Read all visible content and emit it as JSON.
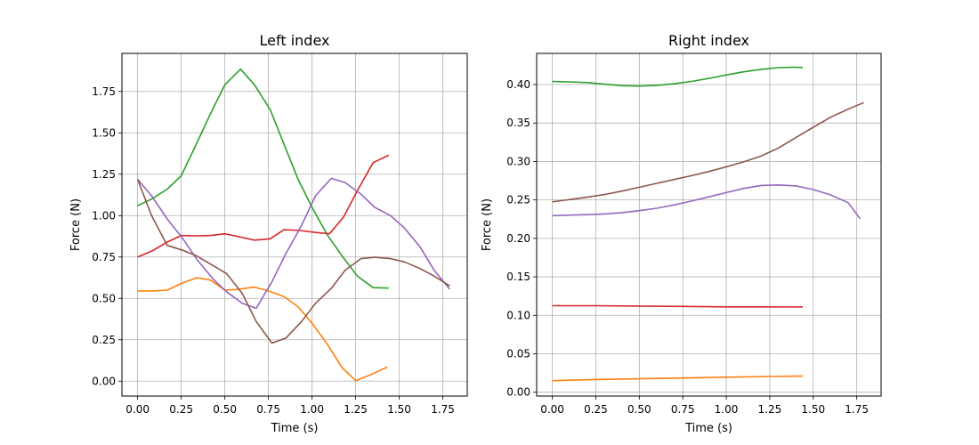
{
  "chart_data": [
    {
      "type": "line",
      "title": "Left index",
      "xlabel": "Time (s)",
      "ylabel": "Force (N)",
      "xlim": [
        -0.09,
        1.89
      ],
      "ylim": [
        -0.09,
        1.98
      ],
      "xticks": [
        0.0,
        0.25,
        0.5,
        0.75,
        1.0,
        1.25,
        1.5,
        1.75
      ],
      "xtick_labels": [
        "0.00",
        "0.25",
        "0.50",
        "0.75",
        "1.00",
        "1.25",
        "1.50",
        "1.75"
      ],
      "yticks": [
        0.0,
        0.25,
        0.5,
        0.75,
        1.0,
        1.25,
        1.5,
        1.75
      ],
      "ytick_labels": [
        "0.00",
        "0.25",
        "0.50",
        "0.75",
        "1.00",
        "1.25",
        "1.50",
        "1.75"
      ],
      "grid": true,
      "series": [
        {
          "color": "#ff7f0e",
          "x": [
            0.0,
            0.08,
            0.17,
            0.25,
            0.34,
            0.42,
            0.5,
            0.58,
            0.67,
            0.75,
            0.84,
            0.92,
            1.0,
            1.09,
            1.17,
            1.25,
            1.34,
            1.43
          ],
          "y": [
            0.545,
            0.545,
            0.55,
            0.59,
            0.625,
            0.61,
            0.55,
            0.555,
            0.568,
            0.545,
            0.51,
            0.45,
            0.35,
            0.22,
            0.085,
            0.003,
            0.04,
            0.085
          ]
        },
        {
          "color": "#2ca02c",
          "x": [
            0.0,
            0.08,
            0.17,
            0.25,
            0.34,
            0.42,
            0.5,
            0.59,
            0.67,
            0.76,
            0.84,
            0.92,
            1.0,
            1.09,
            1.17,
            1.26,
            1.35,
            1.44
          ],
          "y": [
            1.06,
            1.1,
            1.16,
            1.24,
            1.44,
            1.62,
            1.79,
            1.885,
            1.79,
            1.64,
            1.43,
            1.22,
            1.05,
            0.88,
            0.76,
            0.635,
            0.565,
            0.562
          ]
        },
        {
          "color": "#d62728",
          "x": [
            0.0,
            0.08,
            0.17,
            0.25,
            0.34,
            0.42,
            0.5,
            0.59,
            0.67,
            0.76,
            0.84,
            0.93,
            1.01,
            1.1,
            1.18,
            1.26,
            1.35,
            1.44
          ],
          "y": [
            0.75,
            0.785,
            0.84,
            0.88,
            0.878,
            0.88,
            0.89,
            0.87,
            0.852,
            0.86,
            0.915,
            0.91,
            0.9,
            0.89,
            0.99,
            1.15,
            1.32,
            1.365
          ]
        },
        {
          "color": "#9467bd",
          "x": [
            0.0,
            0.08,
            0.17,
            0.26,
            0.34,
            0.43,
            0.51,
            0.6,
            0.68,
            0.77,
            0.85,
            0.94,
            1.02,
            1.11,
            1.19,
            1.28,
            1.36,
            1.45,
            1.53,
            1.62,
            1.7,
            1.79
          ],
          "y": [
            1.22,
            1.12,
            0.98,
            0.86,
            0.735,
            0.62,
            0.54,
            0.47,
            0.44,
            0.6,
            0.77,
            0.94,
            1.12,
            1.225,
            1.2,
            1.13,
            1.05,
            1.0,
            0.925,
            0.81,
            0.67,
            0.555
          ]
        },
        {
          "color": "#8c564b",
          "x": [
            0.0,
            0.08,
            0.17,
            0.26,
            0.34,
            0.43,
            0.51,
            0.6,
            0.68,
            0.77,
            0.85,
            0.94,
            1.02,
            1.11,
            1.19,
            1.28,
            1.36,
            1.45,
            1.53,
            1.62,
            1.7,
            1.79
          ],
          "y": [
            1.22,
            1.0,
            0.82,
            0.79,
            0.755,
            0.7,
            0.65,
            0.53,
            0.36,
            0.23,
            0.26,
            0.36,
            0.47,
            0.56,
            0.67,
            0.74,
            0.748,
            0.74,
            0.72,
            0.68,
            0.635,
            0.575
          ]
        }
      ]
    },
    {
      "type": "line",
      "title": "Right index",
      "xlabel": "Time (s)",
      "ylabel": "Force (N)",
      "xlim": [
        -0.09,
        1.89
      ],
      "ylim": [
        -0.005,
        0.4405
      ],
      "xticks": [
        0.0,
        0.25,
        0.5,
        0.75,
        1.0,
        1.25,
        1.5,
        1.75
      ],
      "xtick_labels": [
        "0.00",
        "0.25",
        "0.50",
        "0.75",
        "1.00",
        "1.25",
        "1.50",
        "1.75"
      ],
      "yticks": [
        0.0,
        0.05,
        0.1,
        0.15,
        0.2,
        0.25,
        0.3,
        0.35,
        0.4
      ],
      "ytick_labels": [
        "0.00",
        "0.05",
        "0.10",
        "0.15",
        "0.20",
        "0.25",
        "0.30",
        "0.35",
        "0.40"
      ],
      "grid": true,
      "series": [
        {
          "color": "#ff7f0e",
          "x": [
            0.0,
            0.25,
            0.5,
            0.75,
            1.0,
            1.25,
            1.44
          ],
          "y": [
            0.015,
            0.0165,
            0.0175,
            0.0185,
            0.0195,
            0.0205,
            0.021
          ]
        },
        {
          "color": "#2ca02c",
          "x": [
            0.0,
            0.1,
            0.2,
            0.3,
            0.4,
            0.5,
            0.6,
            0.7,
            0.8,
            0.9,
            1.0,
            1.1,
            1.2,
            1.3,
            1.38,
            1.44
          ],
          "y": [
            0.404,
            0.4035,
            0.4025,
            0.4005,
            0.3985,
            0.398,
            0.399,
            0.401,
            0.404,
            0.408,
            0.4125,
            0.4165,
            0.4198,
            0.422,
            0.4225,
            0.4222
          ]
        },
        {
          "color": "#d62728",
          "x": [
            0.0,
            0.25,
            0.5,
            0.75,
            1.0,
            1.25,
            1.44
          ],
          "y": [
            0.1125,
            0.1125,
            0.112,
            0.1115,
            0.111,
            0.111,
            0.1108
          ]
        },
        {
          "color": "#9467bd",
          "x": [
            0.0,
            0.1,
            0.2,
            0.3,
            0.4,
            0.5,
            0.6,
            0.7,
            0.8,
            0.9,
            1.0,
            1.1,
            1.2,
            1.3,
            1.4,
            1.5,
            1.6,
            1.7,
            1.77
          ],
          "y": [
            0.2295,
            0.2302,
            0.2308,
            0.2318,
            0.2335,
            0.236,
            0.2392,
            0.2435,
            0.2485,
            0.254,
            0.2595,
            0.265,
            0.2688,
            0.2695,
            0.2682,
            0.2635,
            0.2565,
            0.2465,
            0.2255
          ]
        },
        {
          "color": "#8c564b",
          "x": [
            0.0,
            0.1,
            0.2,
            0.3,
            0.4,
            0.5,
            0.6,
            0.7,
            0.8,
            0.9,
            1.0,
            1.1,
            1.2,
            1.3,
            1.4,
            1.5,
            1.6,
            1.7,
            1.79
          ],
          "y": [
            0.2475,
            0.2505,
            0.2535,
            0.257,
            0.2615,
            0.2665,
            0.2715,
            0.2765,
            0.2815,
            0.287,
            0.293,
            0.2995,
            0.307,
            0.3175,
            0.331,
            0.3445,
            0.3575,
            0.368,
            0.3765
          ]
        }
      ]
    }
  ]
}
